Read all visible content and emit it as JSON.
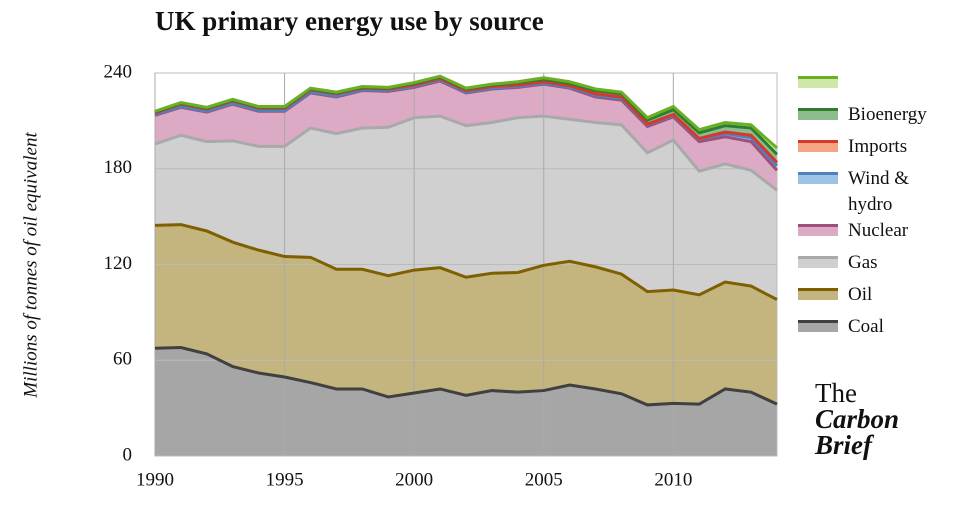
{
  "chart_data": {
    "type": "stacked_area",
    "title": "UK primary energy use by source",
    "ylabel": "Millions of tonnes of oil equivalent",
    "x": [
      1990,
      1991,
      1992,
      1993,
      1994,
      1995,
      1996,
      1997,
      1998,
      1999,
      2000,
      2001,
      2002,
      2003,
      2004,
      2005,
      2006,
      2007,
      2008,
      2009,
      2010,
      2011,
      2012,
      2013,
      2014
    ],
    "xlim": [
      1990,
      2014
    ],
    "xticks": [
      1990,
      1995,
      2000,
      2005,
      2010
    ],
    "ylim": [
      0,
      240
    ],
    "yticks": [
      0,
      60,
      120,
      180,
      240
    ],
    "grid": true,
    "series": [
      {
        "name": "Coal",
        "color": "#a6a6a6",
        "line_color": "#404040",
        "values": [
          67.5,
          68,
          64,
          56,
          52,
          49.5,
          46,
          42,
          42,
          37,
          39.5,
          42,
          38,
          41,
          40,
          41,
          44.5,
          42,
          39,
          32,
          33,
          32.5,
          42,
          40,
          32.5
        ]
      },
      {
        "name": "Oil",
        "color": "#c4b47e",
        "line_color": "#7f6000",
        "values": [
          77,
          77,
          77,
          78,
          77,
          75.5,
          78.5,
          75,
          75,
          76,
          77,
          76,
          74,
          73.5,
          75,
          78.5,
          77.5,
          76.5,
          75,
          71,
          71,
          68.5,
          67,
          66.5,
          65.5
        ]
      },
      {
        "name": "Gas",
        "color": "#d0d0d0",
        "line_color": "#a9a9a9",
        "values": [
          51,
          56,
          56,
          63.5,
          65,
          69,
          81,
          85,
          88.5,
          93,
          95.5,
          95,
          95,
          94.5,
          97,
          93.5,
          89,
          90.5,
          93.5,
          87,
          94,
          77.5,
          74,
          72.5,
          68.5
        ]
      },
      {
        "name": "Nuclear",
        "color": "#dcaac4",
        "line_color": "#9e4f7a",
        "values": [
          18,
          17.5,
          18.5,
          23,
          22,
          22,
          22,
          23,
          23.5,
          22.5,
          19,
          22,
          20.5,
          21,
          19,
          20,
          19.5,
          16,
          15.5,
          16.5,
          14.5,
          18.5,
          17,
          18,
          12.5
        ]
      },
      {
        "name": "Wind & hydro",
        "color": "#9dc3e6",
        "line_color": "#4f81bd",
        "values": [
          0.5,
          0.5,
          0.5,
          0.5,
          0.5,
          0.5,
          0.5,
          0.5,
          0.5,
          0.5,
          0.5,
          0.5,
          0.5,
          0.5,
          0.5,
          0.5,
          0.5,
          1,
          1,
          1,
          1,
          1.5,
          2,
          2.5,
          3
        ]
      },
      {
        "name": "Imports",
        "color": "#f4a582",
        "line_color": "#d9372a",
        "values": [
          1,
          1.5,
          1.5,
          1.5,
          1.5,
          1.5,
          1.5,
          1.5,
          1,
          1,
          1,
          1,
          1,
          1,
          1,
          1,
          1,
          1,
          1,
          0.5,
          0.5,
          0.5,
          1,
          1.5,
          2
        ]
      },
      {
        "name": "Bioenergy",
        "color": "#8fbc8f",
        "line_color": "#2e7d32",
        "values": [
          0.5,
          0.5,
          0.5,
          0.5,
          0.5,
          0.5,
          0.5,
          0.5,
          0.5,
          0.5,
          1,
          1,
          1,
          1,
          1.5,
          1.5,
          1.5,
          2,
          2,
          2.5,
          3,
          3.5,
          4,
          4.5,
          5
        ]
      },
      {
        "name": null,
        "color": "#cfe8a8",
        "line_color": "#6ab023",
        "values": [
          0.5,
          0.5,
          0.5,
          0.5,
          0.5,
          0.5,
          0.5,
          0.5,
          0.5,
          0.5,
          0.5,
          0.5,
          0.5,
          0.5,
          0.5,
          1,
          1,
          1,
          1,
          1.5,
          2,
          2,
          2,
          2,
          4
        ]
      }
    ]
  },
  "brand": {
    "line1": "The",
    "line2": "Carbon",
    "line3": "Brief"
  }
}
